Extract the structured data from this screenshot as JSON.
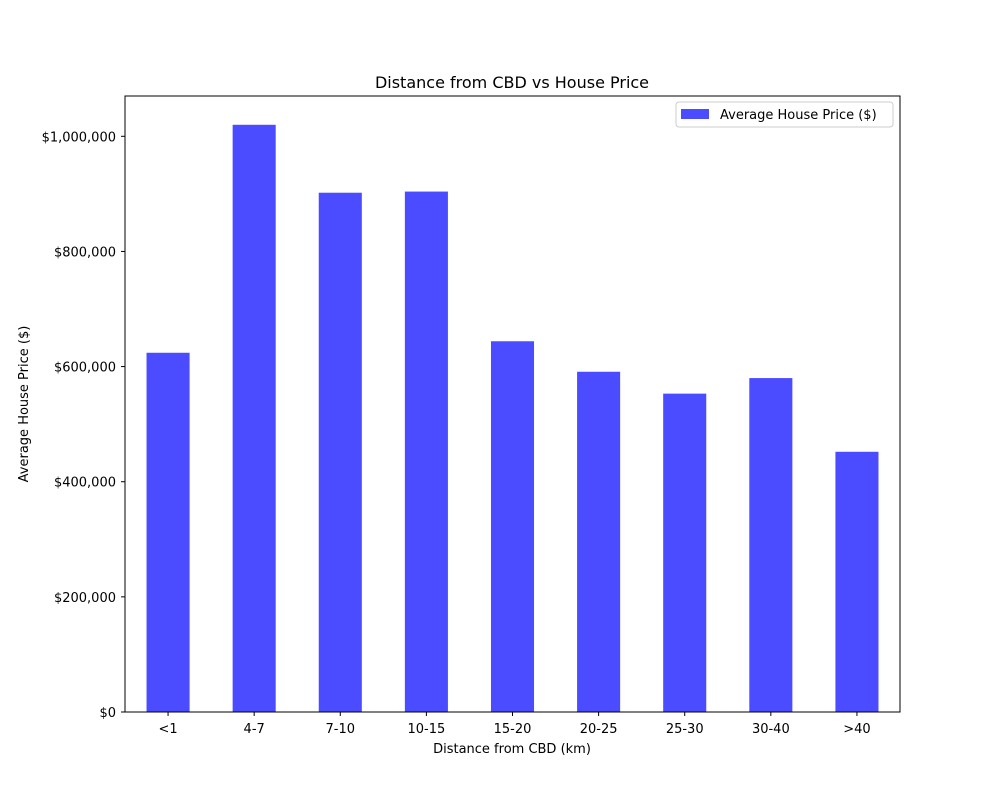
{
  "chart_data": {
    "type": "bar",
    "title": "Distance from CBD vs House Price",
    "xlabel": "Distance from CBD (km)",
    "ylabel": "Average House Price ($)",
    "categories": [
      "<1",
      "4-7",
      "7-10",
      "10-15",
      "15-20",
      "20-25",
      "25-30",
      "30-40",
      ">40"
    ],
    "series": [
      {
        "name": "Average House Price ($)",
        "values": [
          624000,
          1020000,
          902000,
          904000,
          644000,
          591000,
          553000,
          580000,
          452000
        ],
        "color": "#4b4bff"
      }
    ],
    "ylim": [
      0,
      1070000
    ],
    "yticks": [
      0,
      200000,
      400000,
      600000,
      800000,
      1000000
    ],
    "ytick_labels": [
      "$0",
      "$200,000",
      "$400,000",
      "$600,000",
      "$800,000",
      "$1,000,000"
    ],
    "grid": false,
    "legend_position": "top-right"
  }
}
